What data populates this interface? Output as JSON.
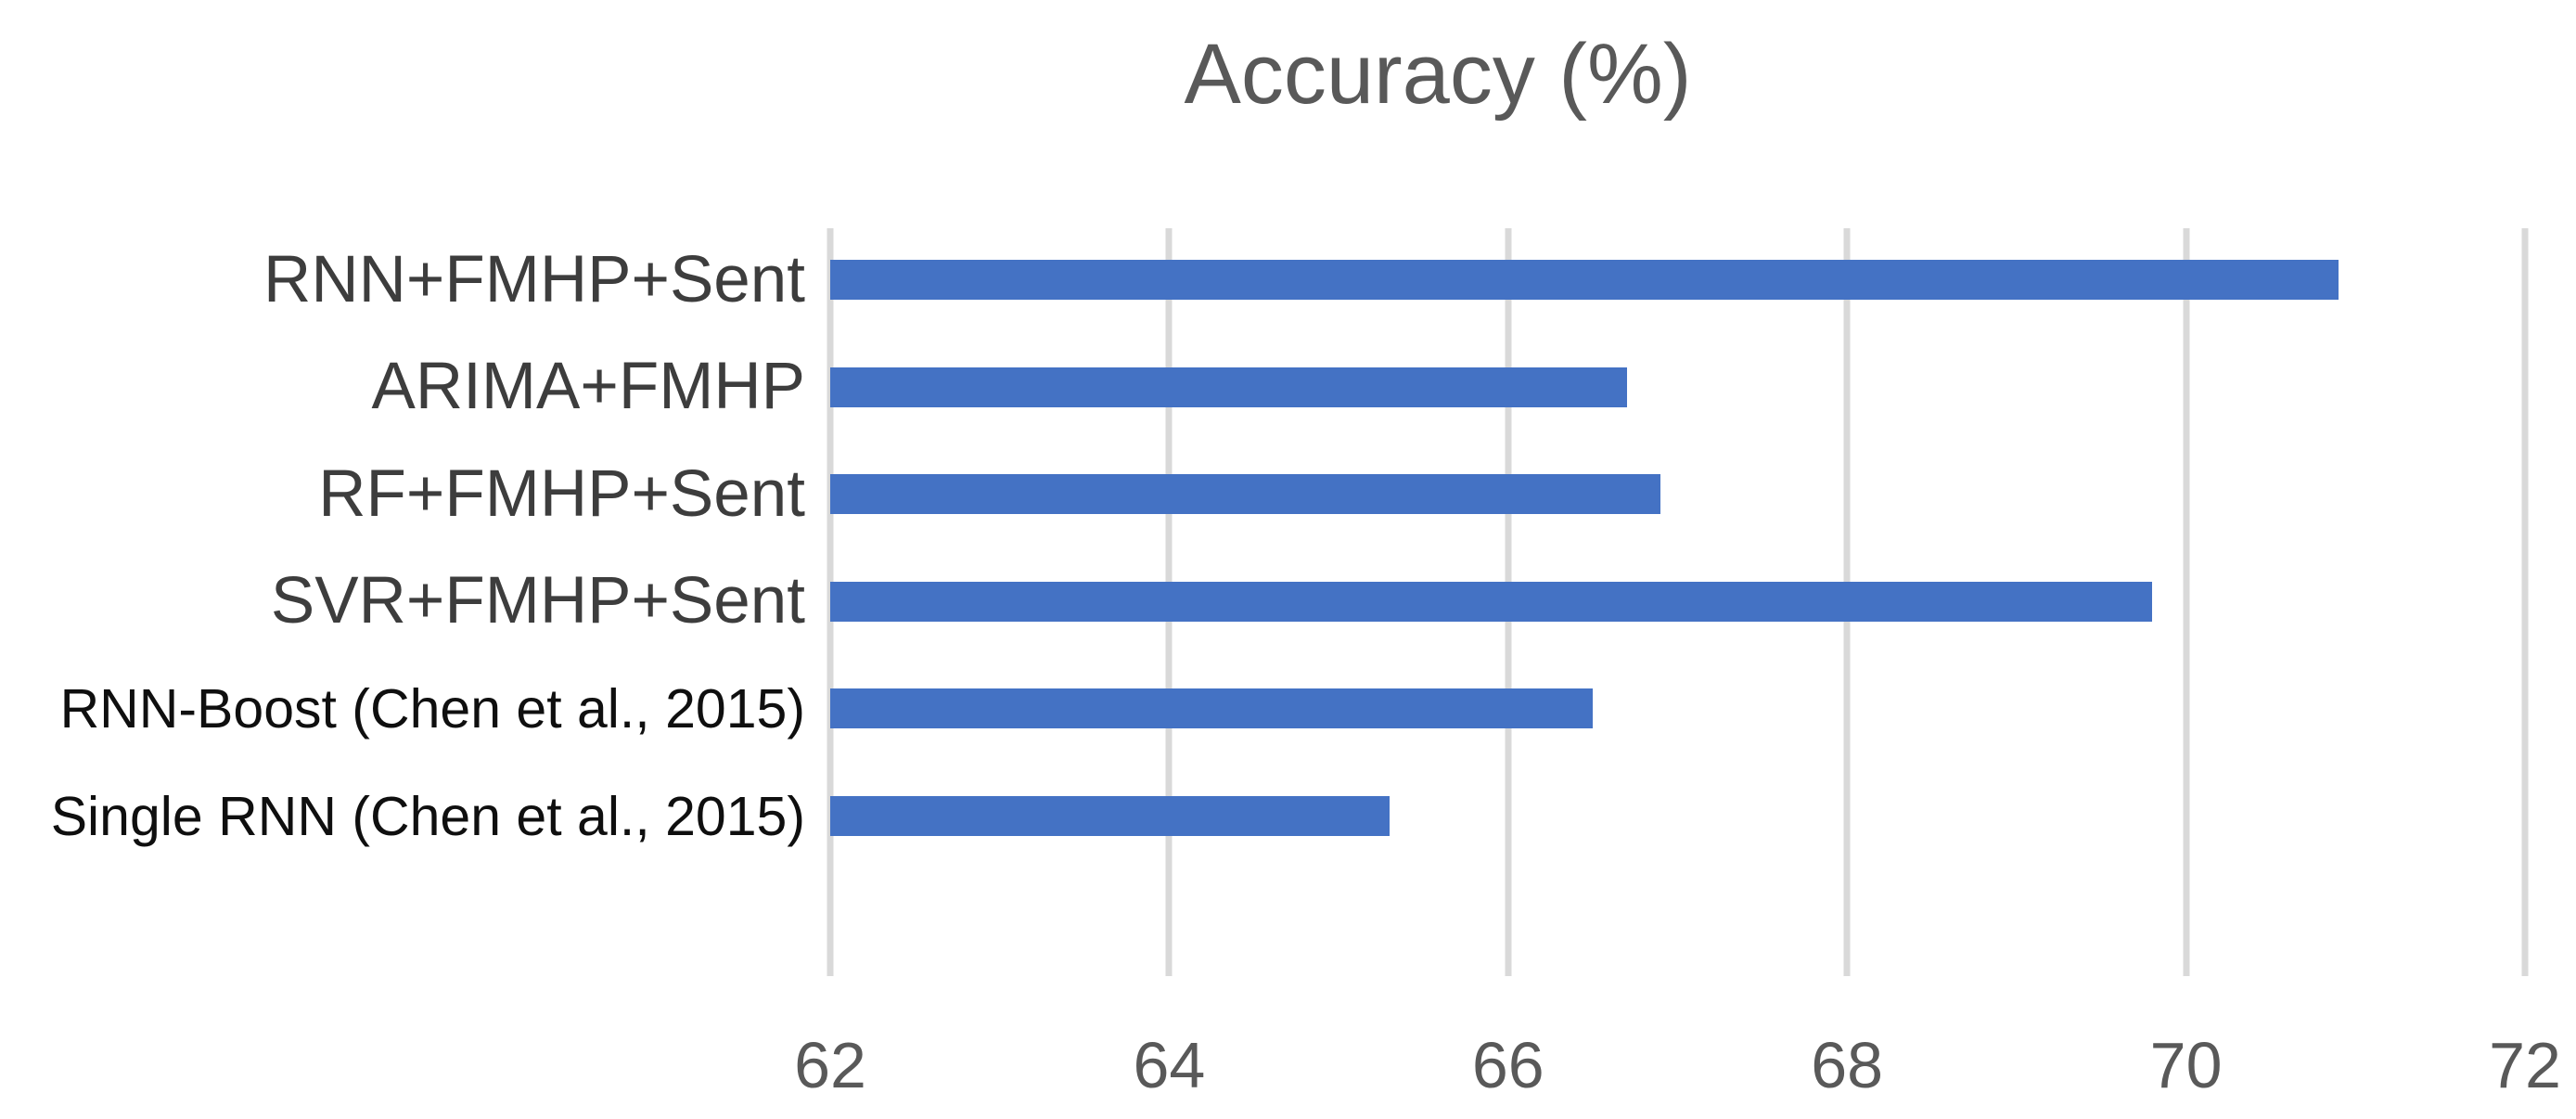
{
  "chart_data": {
    "type": "bar",
    "orientation": "horizontal",
    "title": "Accuracy (%)",
    "categories": [
      "RNN+FMHP+Sent",
      "ARIMA+FMHP",
      "RF+FMHP+Sent",
      "SVR+FMHP+Sent",
      "RNN-Boost (Chen et al., 2015)",
      "Single RNN (Chen et al., 2015)"
    ],
    "values": [
      70.9,
      66.7,
      66.9,
      69.8,
      66.5,
      65.3
    ],
    "xlim": [
      62,
      72
    ],
    "x_ticks": [
      62,
      64,
      66,
      68,
      70,
      72
    ],
    "grid": "vertical-only",
    "legend": "none",
    "colors": {
      "bar": "#4472c4",
      "gridline": "#d9d9d9",
      "title_text": "#595959",
      "tick_text": "#595959",
      "category_text": "#1f1f1f"
    }
  }
}
